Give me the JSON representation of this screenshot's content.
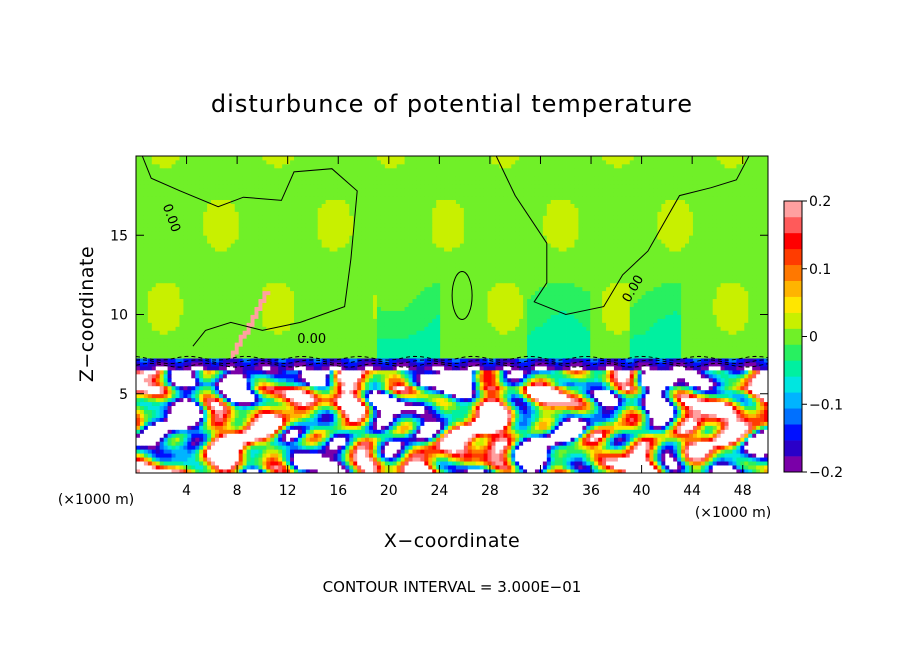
{
  "chart_data": {
    "type": "heatmap",
    "title": "disturbunce of potential temperature",
    "xlabel": "X−coordinate",
    "ylabel": "Z−coordinate",
    "x_unit_left": "(×1000 m)",
    "x_unit_right": "(×1000 m)",
    "xlim": [
      0,
      50
    ],
    "ylim": [
      0,
      20
    ],
    "x_ticks": [
      4,
      8,
      12,
      16,
      20,
      24,
      28,
      32,
      36,
      40,
      44,
      48
    ],
    "y_ticks": [
      5,
      10,
      15
    ],
    "colorbar": {
      "range": [
        -0.2,
        0.2
      ],
      "tick_values": [
        0.2,
        0.1,
        0,
        -0.1,
        -0.2
      ],
      "tick_labels": [
        "0.2",
        "0.1",
        "0",
        "−0.1",
        "−0.2"
      ],
      "colors": [
        "#7a00a8",
        "#2a00c8",
        "#0010ff",
        "#0070ff",
        "#00b4ff",
        "#00e6e0",
        "#00f0a0",
        "#28f060",
        "#70f028",
        "#c8f000",
        "#ffe600",
        "#ffb400",
        "#ff7800",
        "#ff3c00",
        "#ff0000",
        "#ff5a5a",
        "#ffa0a0"
      ]
    },
    "contour_labels": [
      {
        "text": "0.00",
        "x": 2.5,
        "y": 16.0,
        "rotate": 70
      },
      {
        "text": "0.00",
        "x": 13.9,
        "y": 8.2,
        "rotate": 0
      },
      {
        "text": "0.00",
        "x": 39.6,
        "y": 11.5,
        "rotate": -60
      }
    ],
    "annotation": "CONTOUR INTERVAL = 3.000E−01",
    "regions": {
      "upper_layer": {
        "z_range": [
          7.3,
          20
        ],
        "value_approx": 0.0
      },
      "inversion_band": {
        "z_range": [
          6.6,
          7.3
        ],
        "value_approx": -0.15
      },
      "lower_layer": {
        "z_range": [
          0,
          6.6
        ],
        "value_range": [
          -0.2,
          0.2
        ]
      }
    }
  }
}
